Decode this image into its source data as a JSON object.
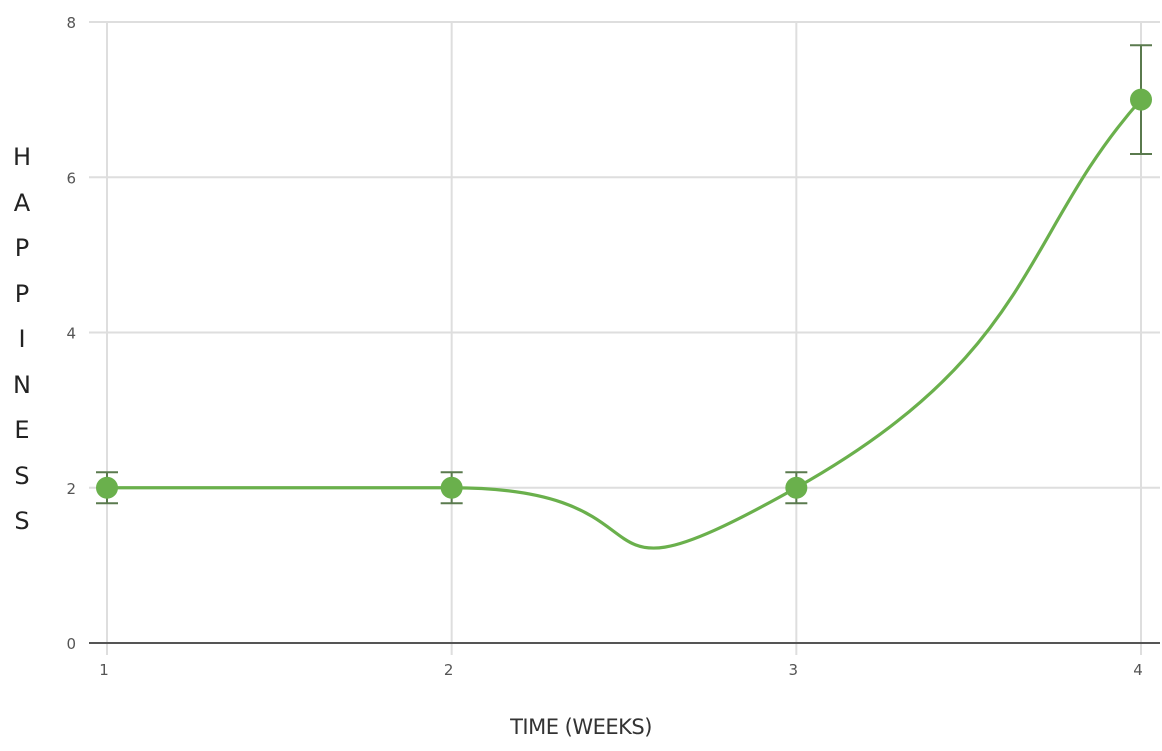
{
  "chart_data": {
    "type": "line",
    "title": "",
    "xlabel": "TIME (WEEKS)",
    "ylabel": "HAPPINESS",
    "x": [
      1,
      2,
      3,
      4
    ],
    "xlim": [
      1,
      4
    ],
    "ylim": [
      0,
      8
    ],
    "x_ticks": [
      "1",
      "2",
      "3",
      "4"
    ],
    "y_ticks": [
      "0",
      "2",
      "4",
      "6",
      "8"
    ],
    "grid": true,
    "legend": "none",
    "series": [
      {
        "values": [
          2,
          2,
          2,
          7
        ],
        "error": [
          0.2,
          0.2,
          0.2,
          0.7
        ],
        "color": "#6ab04c",
        "error_color": "#5a7a4e"
      }
    ]
  }
}
